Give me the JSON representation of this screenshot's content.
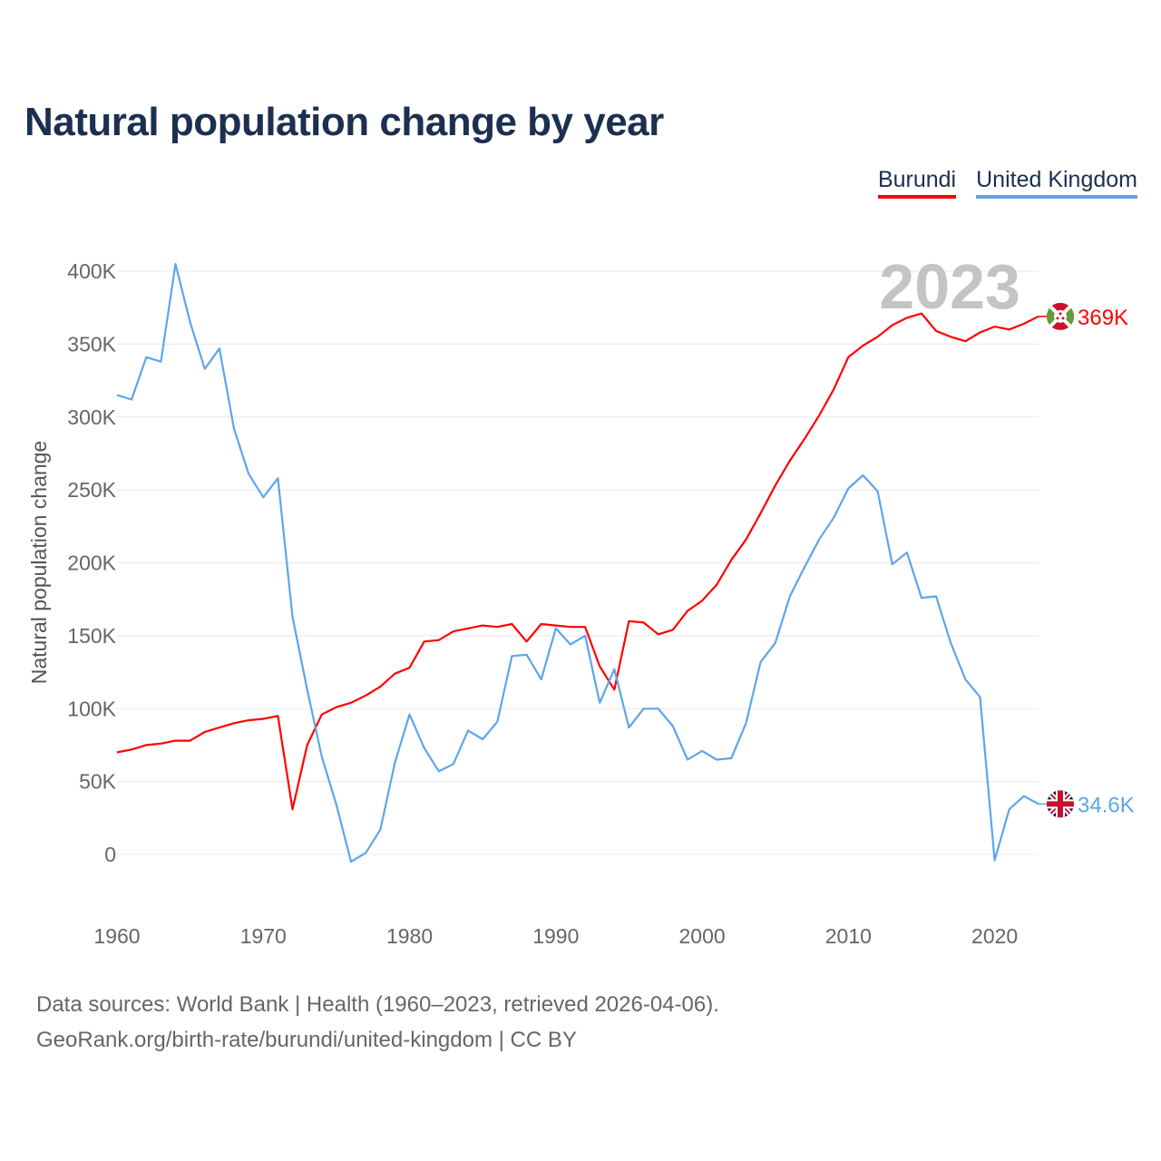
{
  "title": "Natural population change by year",
  "legend": [
    {
      "label": "Burundi",
      "color": "#ff0000"
    },
    {
      "label": "United Kingdom",
      "color": "#5ea5ea"
    }
  ],
  "year_watermark": "2023",
  "footer": {
    "line1": "Data sources: World Bank | Health (1960–2023, retrieved 2026-04-06).",
    "line2": "GeoRank.org/birth-rate/burundi/united-kingdom | CC BY"
  },
  "chart_data": {
    "type": "line",
    "title": "Natural population change by year",
    "xlabel": "",
    "ylabel": "Natural population change",
    "xlim": [
      1960,
      2023
    ],
    "ylim": [
      -30000,
      420000
    ],
    "x_ticks": [
      1960,
      1970,
      1980,
      1990,
      2000,
      2010,
      2020
    ],
    "y_ticks": [
      0,
      50000,
      100000,
      150000,
      200000,
      250000,
      300000,
      350000,
      400000
    ],
    "y_tick_labels": [
      "0",
      "50K",
      "100K",
      "150K",
      "200K",
      "250K",
      "300K",
      "350K",
      "400K"
    ],
    "grid": true,
    "legend_placement": "top-right",
    "x": [
      1960,
      1961,
      1962,
      1963,
      1964,
      1965,
      1966,
      1967,
      1968,
      1969,
      1970,
      1971,
      1972,
      1973,
      1974,
      1975,
      1976,
      1977,
      1978,
      1979,
      1980,
      1981,
      1982,
      1983,
      1984,
      1985,
      1986,
      1987,
      1988,
      1989,
      1990,
      1991,
      1992,
      1993,
      1994,
      1995,
      1996,
      1997,
      1998,
      1999,
      2000,
      2001,
      2002,
      2003,
      2004,
      2005,
      2006,
      2007,
      2008,
      2009,
      2010,
      2011,
      2012,
      2013,
      2014,
      2015,
      2016,
      2017,
      2018,
      2019,
      2020,
      2021,
      2022,
      2023
    ],
    "series": [
      {
        "name": "Burundi",
        "color": "#ff0000",
        "end_label": "369K",
        "flag": "burundi-flag",
        "values": [
          70000,
          72000,
          75000,
          76000,
          78000,
          78000,
          84000,
          87000,
          90000,
          92000,
          93000,
          95000,
          31000,
          75000,
          96000,
          101000,
          104000,
          109000,
          115000,
          124000,
          128000,
          146000,
          147000,
          153000,
          155000,
          157000,
          156000,
          158000,
          146000,
          158000,
          157000,
          156000,
          156000,
          129000,
          113000,
          160000,
          159000,
          151000,
          154000,
          167000,
          174000,
          185000,
          202000,
          216000,
          234000,
          253000,
          270000,
          285000,
          301000,
          319000,
          341000,
          349000,
          355000,
          363000,
          368000,
          371000,
          359000,
          355000,
          352000,
          358000,
          362000,
          360000,
          364000,
          369000
        ]
      },
      {
        "name": "United Kingdom",
        "color": "#5ea5ea",
        "end_label": "34.6K",
        "flag": "uk-flag",
        "values": [
          315000,
          312000,
          341000,
          338000,
          405000,
          365000,
          333000,
          347000,
          292000,
          261000,
          245000,
          258000,
          163000,
          113000,
          67000,
          34000,
          -5000,
          1000,
          17000,
          63000,
          96000,
          73000,
          57000,
          62000,
          85000,
          79000,
          91000,
          136000,
          137000,
          120000,
          155000,
          144000,
          150000,
          104000,
          127000,
          87000,
          100000,
          100000,
          88000,
          65000,
          71000,
          65000,
          66000,
          90000,
          132000,
          145000,
          177000,
          197000,
          216000,
          231000,
          251000,
          260000,
          249000,
          199000,
          207000,
          176000,
          177000,
          145000,
          120000,
          108000,
          -4000,
          31000,
          40000,
          34600
        ]
      }
    ]
  }
}
